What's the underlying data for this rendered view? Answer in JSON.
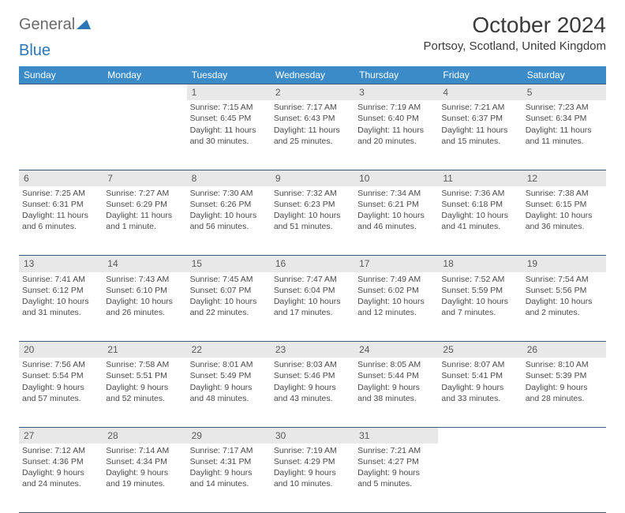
{
  "logo": {
    "text1": "General",
    "text2": "Blue"
  },
  "title": "October 2024",
  "location": "Portsoy, Scotland, United Kingdom",
  "colors": {
    "header_bg": "#3b8bc9",
    "header_fg": "#ffffff",
    "daynum_bg": "#e8e8e8",
    "row_border": "#3b5a7a",
    "text": "#4a4a4a",
    "logo_gray": "#6a6a6a",
    "logo_blue": "#2a76b8"
  },
  "dayHeaders": [
    "Sunday",
    "Monday",
    "Tuesday",
    "Wednesday",
    "Thursday",
    "Friday",
    "Saturday"
  ],
  "weeks": [
    [
      null,
      null,
      {
        "n": "1",
        "sunrise": "7:15 AM",
        "sunset": "6:45 PM",
        "daylight": "11 hours and 30 minutes."
      },
      {
        "n": "2",
        "sunrise": "7:17 AM",
        "sunset": "6:43 PM",
        "daylight": "11 hours and 25 minutes."
      },
      {
        "n": "3",
        "sunrise": "7:19 AM",
        "sunset": "6:40 PM",
        "daylight": "11 hours and 20 minutes."
      },
      {
        "n": "4",
        "sunrise": "7:21 AM",
        "sunset": "6:37 PM",
        "daylight": "11 hours and 15 minutes."
      },
      {
        "n": "5",
        "sunrise": "7:23 AM",
        "sunset": "6:34 PM",
        "daylight": "11 hours and 11 minutes."
      }
    ],
    [
      {
        "n": "6",
        "sunrise": "7:25 AM",
        "sunset": "6:31 PM",
        "daylight": "11 hours and 6 minutes."
      },
      {
        "n": "7",
        "sunrise": "7:27 AM",
        "sunset": "6:29 PM",
        "daylight": "11 hours and 1 minute."
      },
      {
        "n": "8",
        "sunrise": "7:30 AM",
        "sunset": "6:26 PM",
        "daylight": "10 hours and 56 minutes."
      },
      {
        "n": "9",
        "sunrise": "7:32 AM",
        "sunset": "6:23 PM",
        "daylight": "10 hours and 51 minutes."
      },
      {
        "n": "10",
        "sunrise": "7:34 AM",
        "sunset": "6:21 PM",
        "daylight": "10 hours and 46 minutes."
      },
      {
        "n": "11",
        "sunrise": "7:36 AM",
        "sunset": "6:18 PM",
        "daylight": "10 hours and 41 minutes."
      },
      {
        "n": "12",
        "sunrise": "7:38 AM",
        "sunset": "6:15 PM",
        "daylight": "10 hours and 36 minutes."
      }
    ],
    [
      {
        "n": "13",
        "sunrise": "7:41 AM",
        "sunset": "6:12 PM",
        "daylight": "10 hours and 31 minutes."
      },
      {
        "n": "14",
        "sunrise": "7:43 AM",
        "sunset": "6:10 PM",
        "daylight": "10 hours and 26 minutes."
      },
      {
        "n": "15",
        "sunrise": "7:45 AM",
        "sunset": "6:07 PM",
        "daylight": "10 hours and 22 minutes."
      },
      {
        "n": "16",
        "sunrise": "7:47 AM",
        "sunset": "6:04 PM",
        "daylight": "10 hours and 17 minutes."
      },
      {
        "n": "17",
        "sunrise": "7:49 AM",
        "sunset": "6:02 PM",
        "daylight": "10 hours and 12 minutes."
      },
      {
        "n": "18",
        "sunrise": "7:52 AM",
        "sunset": "5:59 PM",
        "daylight": "10 hours and 7 minutes."
      },
      {
        "n": "19",
        "sunrise": "7:54 AM",
        "sunset": "5:56 PM",
        "daylight": "10 hours and 2 minutes."
      }
    ],
    [
      {
        "n": "20",
        "sunrise": "7:56 AM",
        "sunset": "5:54 PM",
        "daylight": "9 hours and 57 minutes."
      },
      {
        "n": "21",
        "sunrise": "7:58 AM",
        "sunset": "5:51 PM",
        "daylight": "9 hours and 52 minutes."
      },
      {
        "n": "22",
        "sunrise": "8:01 AM",
        "sunset": "5:49 PM",
        "daylight": "9 hours and 48 minutes."
      },
      {
        "n": "23",
        "sunrise": "8:03 AM",
        "sunset": "5:46 PM",
        "daylight": "9 hours and 43 minutes."
      },
      {
        "n": "24",
        "sunrise": "8:05 AM",
        "sunset": "5:44 PM",
        "daylight": "9 hours and 38 minutes."
      },
      {
        "n": "25",
        "sunrise": "8:07 AM",
        "sunset": "5:41 PM",
        "daylight": "9 hours and 33 minutes."
      },
      {
        "n": "26",
        "sunrise": "8:10 AM",
        "sunset": "5:39 PM",
        "daylight": "9 hours and 28 minutes."
      }
    ],
    [
      {
        "n": "27",
        "sunrise": "7:12 AM",
        "sunset": "4:36 PM",
        "daylight": "9 hours and 24 minutes."
      },
      {
        "n": "28",
        "sunrise": "7:14 AM",
        "sunset": "4:34 PM",
        "daylight": "9 hours and 19 minutes."
      },
      {
        "n": "29",
        "sunrise": "7:17 AM",
        "sunset": "4:31 PM",
        "daylight": "9 hours and 14 minutes."
      },
      {
        "n": "30",
        "sunrise": "7:19 AM",
        "sunset": "4:29 PM",
        "daylight": "9 hours and 10 minutes."
      },
      {
        "n": "31",
        "sunrise": "7:21 AM",
        "sunset": "4:27 PM",
        "daylight": "9 hours and 5 minutes."
      },
      null,
      null
    ]
  ],
  "labels": {
    "sunrise": "Sunrise:",
    "sunset": "Sunset:",
    "daylight": "Daylight:"
  }
}
